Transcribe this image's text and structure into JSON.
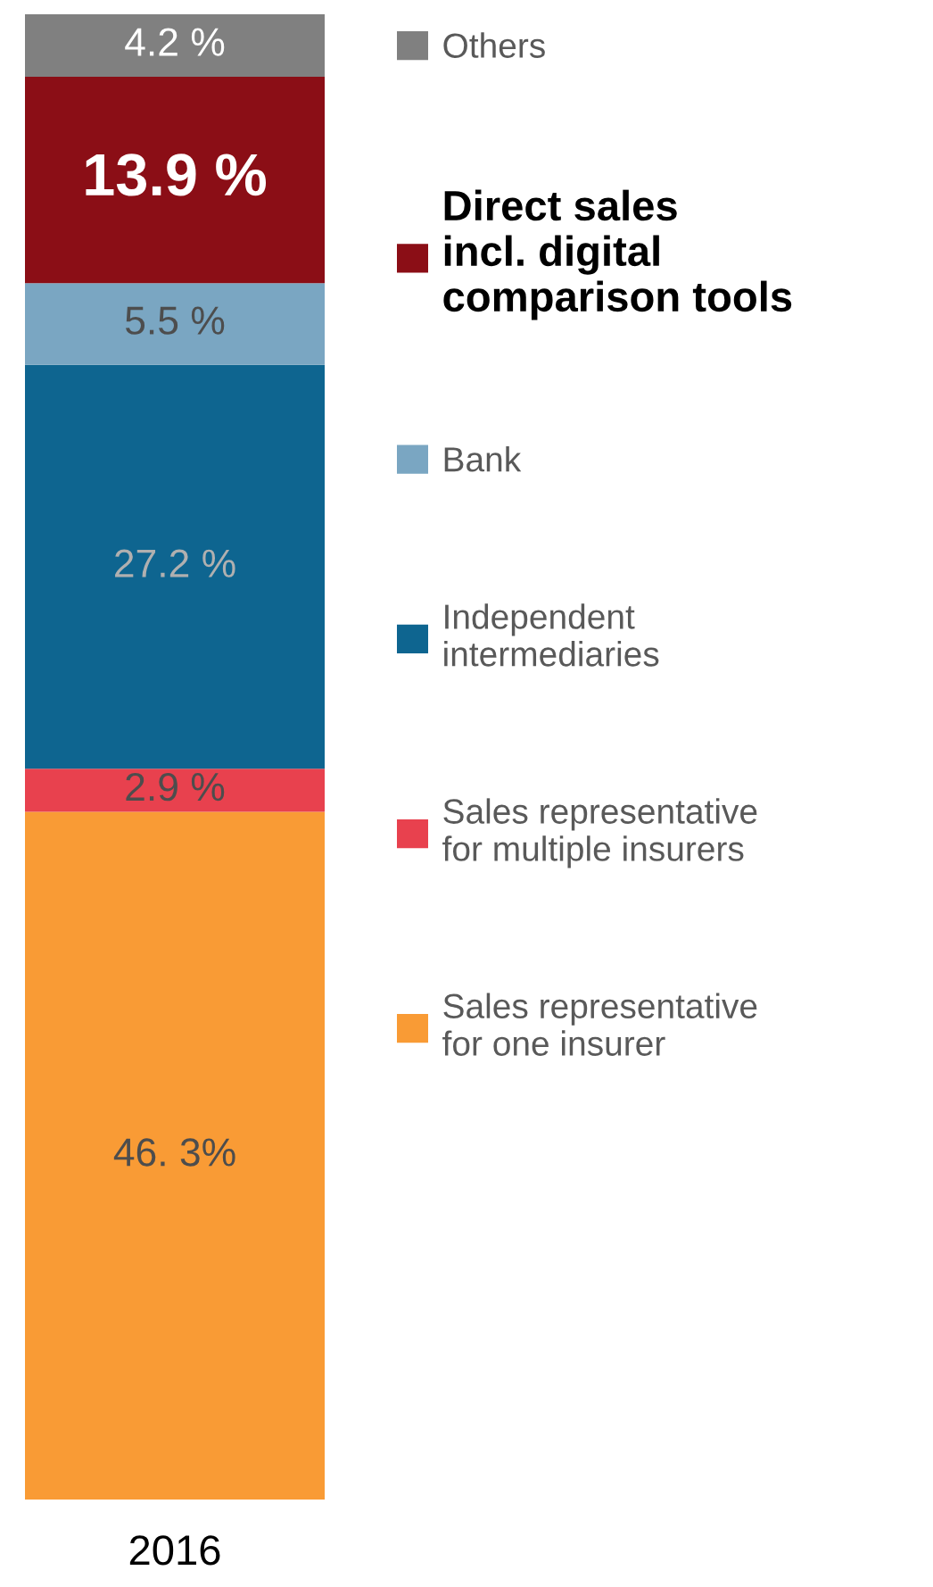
{
  "chart_data": {
    "type": "bar",
    "stacked": true,
    "categories": [
      "2016"
    ],
    "legend": "right",
    "series": [
      {
        "name": "Sales representative\nfor one insurer",
        "color": "#f99b35",
        "values": [
          46.3
        ],
        "value_labels": [
          "46. 3%"
        ]
      },
      {
        "name": "Sales representative\nfor multiple insurers",
        "color": "#e8414e",
        "values": [
          2.9
        ],
        "value_labels": [
          "2.9 %"
        ]
      },
      {
        "name": "Independent\nintermediaries",
        "color": "#0e6590",
        "values": [
          27.2
        ],
        "value_labels": [
          "27.2 %"
        ]
      },
      {
        "name": "Bank",
        "color": "#7aa6c2",
        "values": [
          5.5
        ],
        "value_labels": [
          "5.5 %"
        ]
      },
      {
        "name": "Direct sales\nincl. digital\ncomparison tools",
        "color": "#8b0e16",
        "values": [
          13.9
        ],
        "value_labels": [
          "13.9 %"
        ]
      },
      {
        "name": "Others",
        "color": "#808080",
        "values": [
          4.2
        ],
        "value_labels": [
          "4.2 %"
        ]
      }
    ]
  }
}
